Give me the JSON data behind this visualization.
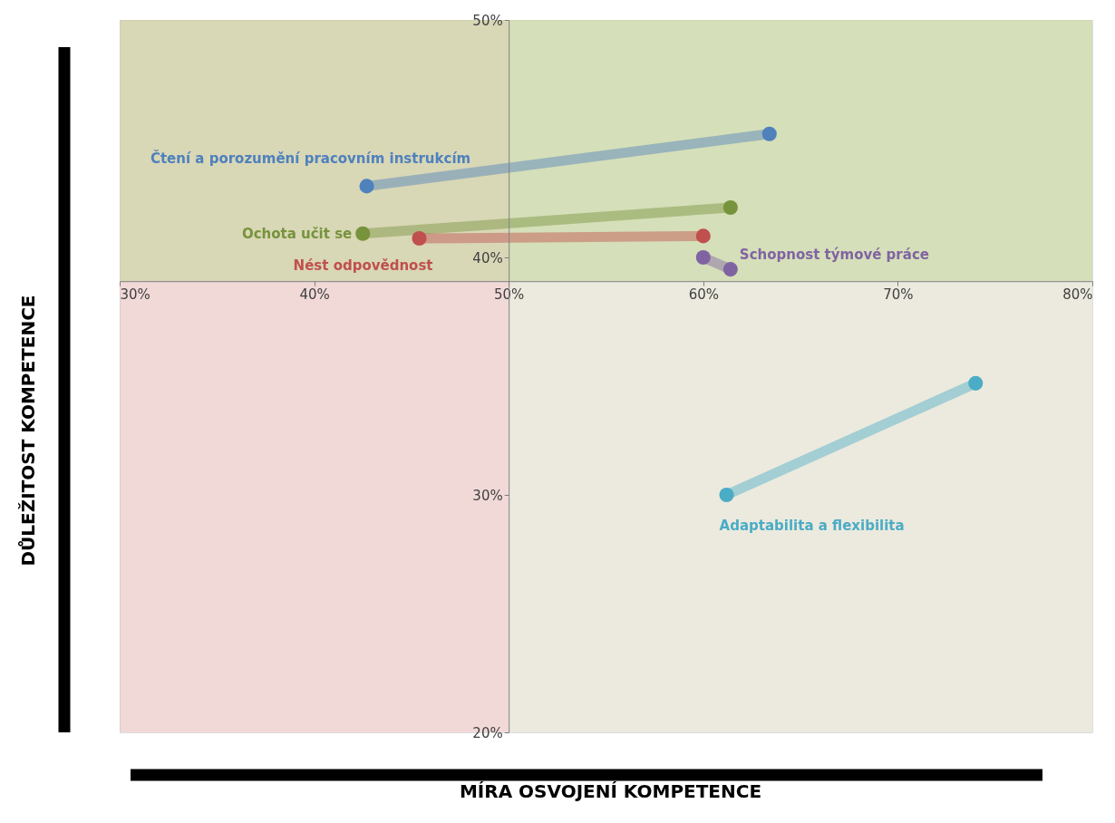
{
  "chart_data": {
    "type": "line",
    "xlabel": "MÍRA OSVOJENÍ KOMPETENCE",
    "ylabel": "DŮLEŽITOST KOMPETENCE",
    "xlim": [
      30,
      80
    ],
    "ylim": [
      20,
      50
    ],
    "xticks": [
      {
        "value": 30,
        "label": "30%"
      },
      {
        "value": 40,
        "label": "40%"
      },
      {
        "value": 50,
        "label": "50%"
      },
      {
        "value": 60,
        "label": "60%"
      },
      {
        "value": 70,
        "label": "70%"
      },
      {
        "value": 80,
        "label": "80%"
      }
    ],
    "yticks": [
      {
        "value": 20,
        "label": "20%"
      },
      {
        "value": 30,
        "label": "30%"
      },
      {
        "value": 40,
        "label": "40%"
      },
      {
        "value": 50,
        "label": "50%"
      }
    ],
    "grid": false,
    "marker": "circle",
    "bands": [
      {
        "axis": "x",
        "from": 30,
        "to": 50,
        "color": "#e6b9b8"
      },
      {
        "axis": "x",
        "from": 50,
        "to": 80,
        "color": "#ddd9c3"
      },
      {
        "axis": "y",
        "from": 39,
        "to": 50,
        "color": "#c3d69b"
      }
    ],
    "series": [
      {
        "name": "Čtení a porozumění pracovním instrukcím",
        "color": "#4f81bd",
        "x": [
          63.4,
          42.7
        ],
        "values": [
          45.2,
          43.0
        ]
      },
      {
        "name": "Ochota učit se",
        "color": "#77933c",
        "x": [
          61.4,
          42.5
        ],
        "values": [
          42.1,
          41.0
        ]
      },
      {
        "name": "Nést odpovědnost",
        "color": "#c0504d",
        "x": [
          60.0,
          45.4
        ],
        "values": [
          40.9,
          40.8
        ]
      },
      {
        "name": "Schopnost týmové práce",
        "color": "#8064a2",
        "x": [
          61.4,
          60.0
        ],
        "values": [
          39.5,
          40.0
        ]
      },
      {
        "name": "Adaptabilita a flexibilita",
        "color": "#4bacc6",
        "x": [
          74.0,
          61.2
        ],
        "values": [
          34.7,
          30.0
        ]
      }
    ]
  }
}
